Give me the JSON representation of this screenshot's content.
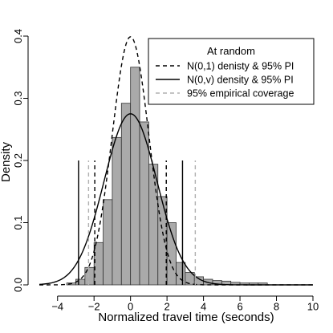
{
  "chart_data": {
    "type": "histogram",
    "title": "",
    "xlabel": "Normalized travel time (seconds)",
    "ylabel": "Density",
    "xlim": [
      -5,
      10
    ],
    "ylim": [
      0,
      0.4
    ],
    "xticks": [
      -4,
      -2,
      0,
      2,
      4,
      6,
      8,
      10
    ],
    "yticks": [
      0.0,
      0.1,
      0.2,
      0.3,
      0.4
    ],
    "xtick_labels": [
      "−4",
      "−2",
      "0",
      "2",
      "4",
      "6",
      "8",
      "10"
    ],
    "ytick_labels": [
      "0.0",
      "0.1",
      "0.2",
      "0.3",
      "0.4"
    ],
    "grid": false,
    "histogram": {
      "bin_width": 0.5,
      "fill": "#aaaaaa",
      "bins": [
        {
          "x0": -3.5,
          "density": 0.003
        },
        {
          "x0": -3.0,
          "density": 0.009
        },
        {
          "x0": -2.5,
          "density": 0.028
        },
        {
          "x0": -2.0,
          "density": 0.068
        },
        {
          "x0": -1.5,
          "density": 0.137
        },
        {
          "x0": -1.0,
          "density": 0.237
        },
        {
          "x0": -0.5,
          "density": 0.292
        },
        {
          "x0": 0.0,
          "density": 0.35
        },
        {
          "x0": 0.5,
          "density": 0.262
        },
        {
          "x0": 1.0,
          "density": 0.194
        },
        {
          "x0": 1.5,
          "density": 0.142
        },
        {
          "x0": 2.0,
          "density": 0.1
        },
        {
          "x0": 2.5,
          "density": 0.036
        },
        {
          "x0": 3.0,
          "density": 0.02
        },
        {
          "x0": 3.5,
          "density": 0.013
        },
        {
          "x0": 4.0,
          "density": 0.009
        },
        {
          "x0": 4.5,
          "density": 0.007
        },
        {
          "x0": 5.0,
          "density": 0.006
        },
        {
          "x0": 5.5,
          "density": 0.004
        },
        {
          "x0": 6.0,
          "density": 0.003
        },
        {
          "x0": 6.5,
          "density": 0.003
        },
        {
          "x0": 7.0,
          "density": 0.003
        }
      ]
    },
    "series": [
      {
        "name": "N(0,1) denisty & 95% PI",
        "type": "density",
        "sd": 1.0,
        "style": "dashed",
        "color": "#000000"
      },
      {
        "name": "N(0,v) density & 95% PI",
        "type": "density",
        "sd": 1.45,
        "style": "solid",
        "color": "#000000"
      }
    ],
    "vertical_lines": [
      {
        "series": "N(0,1) denisty & 95% PI",
        "x": -1.96,
        "y_top": 0.2,
        "style": "dashed",
        "color": "#000000"
      },
      {
        "series": "N(0,1) denisty & 95% PI",
        "x": 1.96,
        "y_top": 0.2,
        "style": "dashed",
        "color": "#000000"
      },
      {
        "series": "N(0,v) density & 95% PI",
        "x": -2.85,
        "y_top": 0.2,
        "style": "solid",
        "color": "#000000"
      },
      {
        "series": "N(0,v) density & 95% PI",
        "x": 2.85,
        "y_top": 0.2,
        "style": "solid",
        "color": "#000000"
      },
      {
        "series": "95% empirical coverage",
        "x": -2.3,
        "y_top": 0.2,
        "style": "dashed",
        "color": "#b0b0b0"
      },
      {
        "series": "95% empirical coverage",
        "x": 3.55,
        "y_top": 0.2,
        "style": "dashed",
        "color": "#b0b0b0"
      }
    ],
    "legend": {
      "position": "top-right",
      "title": "At random",
      "entries": [
        {
          "label": "N(0,1) denisty & 95% PI",
          "style": "dashed",
          "color": "#000000"
        },
        {
          "label": "N(0,v) density & 95% PI",
          "style": "solid",
          "color": "#000000"
        },
        {
          "label": "95% empirical coverage",
          "style": "dashed",
          "color": "#b0b0b0"
        }
      ]
    }
  }
}
